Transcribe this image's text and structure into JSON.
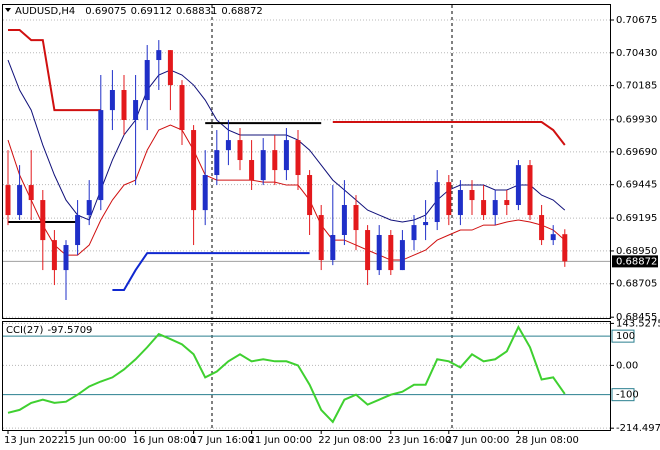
{
  "chart_data": [
    {
      "type": "candlestick",
      "symbol": "AUDUSD,H4",
      "categories": [
        "13 Jun 2022",
        null,
        null,
        null,
        null,
        "15 Jun 00:00",
        null,
        null,
        null,
        null,
        null,
        "16 Jun 08:00",
        null,
        null,
        null,
        null,
        "17 Jun 16:00",
        null,
        null,
        null,
        null,
        "21 Jun 00:00",
        null,
        null,
        null,
        null,
        null,
        "22 Jun 08:00",
        null,
        null,
        null,
        null,
        null,
        "23 Jun 16:00",
        null,
        null,
        null,
        null,
        "27 Jun 00:00",
        null,
        null,
        null,
        null,
        null,
        "28 Jun 08:00",
        null,
        null,
        null,
        null
      ],
      "open": [
        0.69442,
        0.69218,
        0.69442,
        0.6933,
        0.69031,
        0.68807,
        0.68994,
        0.69218,
        0.6933,
        0.70002,
        0.70152,
        0.69928,
        0.70077,
        0.70376,
        0.7045,
        0.70189,
        0.69853,
        0.69255,
        0.69517,
        0.69703,
        0.69778,
        0.69629,
        0.69479,
        0.69703,
        0.69554,
        0.69778,
        0.69517,
        0.69218,
        0.68882,
        0.69069,
        0.69293,
        0.69106,
        0.68807,
        0.69069,
        0.68807,
        0.69031,
        0.69143,
        0.69166,
        0.69464,
        0.69218,
        0.69405,
        0.6933,
        0.69218,
        0.6933,
        0.69293,
        0.69591,
        0.69218,
        0.69031,
        0.69075
      ],
      "high": [
        0.69703,
        0.69591,
        0.69703,
        0.69405,
        0.69106,
        0.69031,
        0.6933,
        0.69479,
        0.70264,
        0.70301,
        0.70264,
        0.70264,
        0.70488,
        0.70525,
        0.7045,
        0.70226,
        0.6989,
        0.69703,
        0.69853,
        0.69928,
        0.69868,
        0.69778,
        0.69793,
        0.69816,
        0.69868,
        0.69853,
        0.69554,
        0.69293,
        0.69442,
        0.69479,
        0.69367,
        0.69143,
        0.69143,
        0.69106,
        0.69106,
        0.69218,
        0.6933,
        0.69554,
        0.69517,
        0.69479,
        0.69479,
        0.69442,
        0.69405,
        0.69405,
        0.69629,
        0.69629,
        0.69293,
        0.69143,
        0.69112
      ],
      "low": [
        0.69143,
        0.69181,
        0.69181,
        0.68807,
        0.68695,
        0.68583,
        0.68919,
        0.69143,
        0.69255,
        0.69853,
        0.69816,
        0.69442,
        0.69853,
        0.70152,
        0.70002,
        0.69741,
        0.68994,
        0.69143,
        0.69442,
        0.69591,
        0.69554,
        0.69405,
        0.69442,
        0.69442,
        0.69479,
        0.69405,
        0.69069,
        0.68807,
        0.68844,
        0.68994,
        0.68956,
        0.68695,
        0.6877,
        0.6877,
        0.68807,
        0.68956,
        0.69031,
        0.69106,
        0.69143,
        0.69143,
        0.69218,
        0.69181,
        0.69143,
        0.69218,
        0.69255,
        0.69181,
        0.68994,
        0.68994,
        0.68831
      ],
      "close": [
        0.69218,
        0.69442,
        0.6933,
        0.69031,
        0.68807,
        0.68994,
        0.69218,
        0.6933,
        0.70002,
        0.70152,
        0.69928,
        0.70077,
        0.70376,
        0.7045,
        0.70189,
        0.69853,
        0.69255,
        0.69517,
        0.69703,
        0.69778,
        0.69629,
        0.69479,
        0.69703,
        0.69554,
        0.69778,
        0.69517,
        0.69218,
        0.68882,
        0.69069,
        0.69293,
        0.69106,
        0.68807,
        0.69069,
        0.68807,
        0.69031,
        0.69143,
        0.69166,
        0.69464,
        0.69218,
        0.69405,
        0.6933,
        0.69218,
        0.6933,
        0.69293,
        0.69591,
        0.69218,
        0.69031,
        0.69075,
        0.68872
      ],
      "up_color": "#1f2fc8",
      "down_color": "#e3191c",
      "series": [
        {
          "color": "#10107a",
          "values": [
            0.70376,
            0.70152,
            0.70002,
            0.69741,
            0.69517,
            0.6933,
            0.69218,
            0.69181,
            0.69405,
            0.69629,
            0.69816,
            0.69928,
            0.70152,
            0.70264,
            0.70301,
            0.70264,
            0.70189,
            0.70077,
            0.69928,
            0.69853,
            0.69816,
            0.69816,
            0.69816,
            0.69816,
            0.69816,
            0.69778,
            0.69703,
            0.69591,
            0.69479,
            0.69405,
            0.6933,
            0.69255,
            0.69218,
            0.69181,
            0.69166,
            0.69181,
            0.69218,
            0.6933,
            0.69405,
            0.69442,
            0.69442,
            0.69442,
            0.69405,
            0.69405,
            0.69442,
            0.69442,
            0.69367,
            0.6933,
            0.69255
          ]
        },
        {
          "color": "#d01010",
          "values": [
            0.69778,
            0.69517,
            0.6933,
            0.69143,
            0.68994,
            0.68919,
            0.68919,
            0.68994,
            0.69181,
            0.6933,
            0.69442,
            0.69479,
            0.69703,
            0.69853,
            0.6989,
            0.69853,
            0.69703,
            0.69517,
            0.69479,
            0.69479,
            0.69479,
            0.69479,
            0.69464,
            0.69464,
            0.69442,
            0.69442,
            0.6933,
            0.69143,
            0.69031,
            0.69031,
            0.68994,
            0.68956,
            0.68919,
            0.68882,
            0.68882,
            0.68919,
            0.68956,
            0.69031,
            0.69069,
            0.69106,
            0.69106,
            0.69143,
            0.69143,
            0.69166,
            0.69181,
            0.69166,
            0.69143,
            0.69106,
            0.69031
          ]
        },
        {
          "color": "#d01010",
          "width": 2,
          "values": [
            0.706,
            0.706,
            0.70525,
            0.70525,
            0.70002,
            0.70002,
            0.70002,
            0.70002,
            0.70002,
            null,
            null,
            null,
            null,
            null,
            null,
            null,
            null,
            null,
            null,
            null,
            null,
            null,
            null,
            null,
            null,
            null,
            null,
            null,
            0.69913,
            0.69913,
            0.69913,
            0.69913,
            0.69913,
            0.69913,
            0.69913,
            0.69913,
            0.69913,
            0.69913,
            0.69913,
            0.69913,
            0.69913,
            0.69913,
            0.69913,
            0.69913,
            0.69913,
            0.69913,
            0.69913,
            0.69853,
            0.69741
          ]
        },
        {
          "color": "#000000",
          "width": 2,
          "values": [
            0.69166,
            0.69166,
            0.69166,
            0.69166,
            0.69166,
            0.69166,
            0.69166,
            null,
            null,
            null,
            null,
            null,
            null,
            null,
            null,
            null,
            null,
            0.69905,
            0.69905,
            0.69905,
            0.69905,
            0.69905,
            0.69905,
            0.69905,
            0.69905,
            0.69905,
            0.69905,
            0.69905,
            null,
            null,
            null,
            null,
            null,
            null,
            null,
            null,
            null,
            null,
            null,
            null,
            null,
            null,
            null,
            null,
            null,
            null,
            null,
            null,
            null
          ]
        },
        {
          "color": "#1028d0",
          "width": 2,
          "values": [
            null,
            null,
            null,
            null,
            null,
            null,
            null,
            null,
            null,
            0.68658,
            0.68658,
            0.68807,
            0.68934,
            0.68934,
            0.68934,
            0.68934,
            0.68934,
            0.68934,
            0.68934,
            0.68934,
            0.68934,
            0.68934,
            0.68934,
            0.68934,
            0.68934,
            0.68934,
            0.68934,
            null,
            null,
            null,
            null,
            null,
            null,
            null,
            null,
            null,
            null,
            null,
            null,
            null,
            null,
            null,
            null,
            null,
            null,
            null,
            null,
            null,
            null
          ]
        }
      ],
      "ylim": [
        0.68449,
        0.70787
      ],
      "yticks": [
        0.70675,
        {
          "value": 0.7043,
          "label": "0.70430"
        },
        0.70185,
        {
          "value": 0.6993,
          "label": "0.69930"
        },
        {
          "value": 0.6969,
          "label": "0.69690"
        },
        0.69445,
        0.69195,
        {
          "value": 0.6895,
          "label": "0.68950"
        },
        0.68705,
        0.68455
      ],
      "grid": true
    },
    {
      "type": "line",
      "title": "CCI(27)",
      "series": [
        {
          "color": "#3fd030",
          "values": [
            -162,
            -152,
            -128,
            -117,
            -128,
            -124,
            -100,
            -72,
            -55,
            -41,
            -14,
            21,
            62,
            107,
            90,
            72,
            38,
            -41,
            -21,
            14,
            38,
            14,
            21,
            14,
            14,
            0,
            -66,
            -152,
            -193,
            -117,
            -100,
            -134,
            -117,
            -100,
            -90,
            -66,
            -66,
            21,
            14,
            -7,
            38,
            14,
            21,
            48,
            131,
            62,
            -48,
            -41,
            -97.5709
          ]
        }
      ],
      "ylim": [
        -220.7,
        148.3
      ],
      "yticks": [
        143.5275,
        {
          "value": 0,
          "label": "0.00"
        },
        -214.4976
      ],
      "levels": [
        100,
        -100
      ],
      "level_color": "#2a7f8f",
      "grid": true
    }
  ]
}
